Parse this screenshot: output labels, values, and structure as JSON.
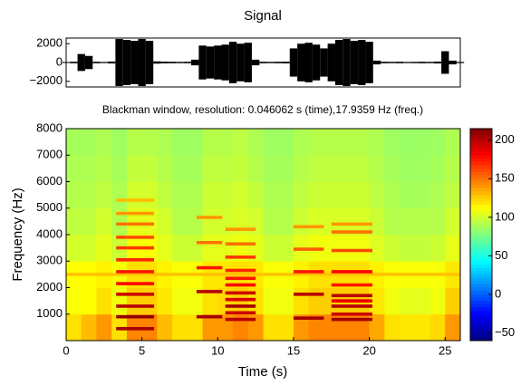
{
  "chart_data": [
    {
      "type": "envelope",
      "title": "Signal",
      "color": "#000000",
      "x": [
        0,
        0.5,
        1,
        1.5,
        2,
        2.5,
        3,
        3.5,
        4,
        4.5,
        5,
        5.5,
        6,
        6.5,
        7,
        7.5,
        8,
        8.5,
        9,
        9.5,
        10,
        10.5,
        11,
        11.5,
        12,
        12.5,
        13,
        13.5,
        14,
        14.5,
        15,
        15.5,
        16,
        16.5,
        17,
        17.5,
        18,
        18.5,
        19,
        19.5,
        20,
        20.5,
        21,
        21.5,
        22,
        22.5,
        23,
        23.5,
        24,
        24.5,
        25,
        25.5,
        26
      ],
      "values": [
        50,
        80,
        900,
        700,
        80,
        60,
        100,
        2500,
        2400,
        2300,
        2500,
        2300,
        120,
        90,
        80,
        70,
        80,
        300,
        1800,
        1700,
        1800,
        1900,
        2200,
        2000,
        2100,
        300,
        80,
        70,
        80,
        90,
        1500,
        2000,
        2100,
        1900,
        1500,
        2000,
        2400,
        2500,
        2300,
        2400,
        2200,
        200,
        80,
        70,
        80,
        60,
        70,
        80,
        70,
        100,
        1200,
        200,
        60
      ],
      "xlim": [
        0,
        26
      ],
      "ylim": [
        -2600,
        2600
      ],
      "yticks": [
        {
          "value": -2000,
          "label": "−2000"
        },
        0,
        2000
      ]
    },
    {
      "type": "heatmap",
      "title": "Blackman window, resolution: 0.046062 s (time),17.9359 Hz (freq.)",
      "xlabel": "Time (s)",
      "ylabel": "Frequency (Hz)",
      "colormap": "jet",
      "xlim": [
        0,
        26
      ],
      "ylim": [
        0,
        8000
      ],
      "zlim": [
        -60,
        215
      ],
      "xticks": [
        0,
        5,
        10,
        15,
        20,
        25
      ],
      "yticks": [
        1000,
        2000,
        3000,
        4000,
        5000,
        6000,
        7000,
        8000
      ],
      "zticks": [
        {
          "value": -50,
          "label": "−50"
        },
        0,
        50,
        100,
        150,
        200
      ],
      "time_bins": [
        0,
        1,
        2,
        3,
        4,
        5,
        6,
        7,
        8,
        9,
        10,
        11,
        12,
        13,
        14,
        15,
        16,
        17,
        18,
        19,
        20,
        21,
        22,
        23,
        24,
        25,
        26
      ],
      "freq_bins": [
        0,
        1000,
        2000,
        3000,
        4000,
        5000,
        6000,
        7000,
        8000
      ],
      "z": [
        [
          120,
          130,
          140,
          120,
          145,
          145,
          130,
          120,
          120,
          140,
          140,
          145,
          140,
          120,
          120,
          140,
          145,
          145,
          145,
          145,
          135,
          120,
          118,
          118,
          122,
          140
        ],
        [
          110,
          112,
          120,
          108,
          125,
          125,
          118,
          108,
          108,
          120,
          122,
          125,
          120,
          108,
          108,
          120,
          125,
          125,
          125,
          125,
          118,
          108,
          105,
          105,
          108,
          125
        ],
        [
          112,
          112,
          115,
          110,
          120,
          120,
          115,
          110,
          110,
          118,
          118,
          120,
          118,
          110,
          110,
          115,
          120,
          120,
          120,
          120,
          115,
          110,
          110,
          110,
          110,
          118
        ],
        [
          100,
          100,
          105,
          98,
          110,
          110,
          105,
          98,
          98,
          105,
          105,
          108,
          105,
          98,
          98,
          105,
          108,
          108,
          108,
          108,
          103,
          98,
          96,
          96,
          98,
          105
        ],
        [
          95,
          95,
          100,
          92,
          105,
          105,
          100,
          92,
          92,
          100,
          100,
          102,
          100,
          92,
          92,
          98,
          102,
          102,
          102,
          102,
          98,
          92,
          92,
          92,
          92,
          100
        ],
        [
          92,
          92,
          95,
          90,
          100,
          100,
          95,
          90,
          90,
          98,
          98,
          100,
          96,
          90,
          90,
          95,
          98,
          98,
          98,
          98,
          94,
          90,
          88,
          88,
          90,
          95
        ],
        [
          90,
          90,
          92,
          88,
          96,
          96,
          92,
          88,
          88,
          95,
          95,
          96,
          92,
          88,
          88,
          92,
          95,
          95,
          95,
          95,
          92,
          88,
          86,
          86,
          88,
          92
        ],
        [
          88,
          88,
          90,
          86,
          92,
          92,
          90,
          86,
          86,
          92,
          92,
          94,
          90,
          86,
          86,
          90,
          92,
          92,
          92,
          92,
          90,
          86,
          85,
          85,
          86,
          90
        ]
      ],
      "harmonics": [
        {
          "start": 0,
          "end": 26,
          "freqs": [
            2500
          ],
          "values": [
            128
          ]
        },
        {
          "start": 3.3,
          "end": 5.8,
          "freqs": [
            450,
            900,
            1300,
            1750,
            2150,
            2600,
            3050,
            3500,
            3900,
            4400,
            4800,
            5300
          ],
          "values": [
            205,
            210,
            200,
            195,
            180,
            175,
            170,
            165,
            160,
            150,
            140,
            130
          ]
        },
        {
          "start": 8.6,
          "end": 10.3,
          "freqs": [
            900,
            1850,
            2750,
            3700,
            4650
          ],
          "values": [
            205,
            200,
            175,
            150,
            140
          ]
        },
        {
          "start": 10.5,
          "end": 12.5,
          "freqs": [
            800,
            1050,
            1300,
            1550,
            1800,
            2100,
            2350,
            2650,
            3150,
            3650,
            4200
          ],
          "values": [
            200,
            195,
            205,
            190,
            195,
            180,
            175,
            170,
            165,
            150,
            140
          ]
        },
        {
          "start": 15,
          "end": 17,
          "freqs": [
            850,
            1750,
            2600,
            3450,
            4300
          ],
          "values": [
            205,
            200,
            175,
            155,
            140
          ]
        },
        {
          "start": 17.5,
          "end": 20.2,
          "freqs": [
            800,
            1000,
            1300,
            1500,
            1700,
            2100,
            2600,
            3400,
            4100,
            4400
          ],
          "values": [
            205,
            195,
            200,
            185,
            200,
            175,
            180,
            160,
            150,
            140
          ]
        }
      ]
    }
  ]
}
